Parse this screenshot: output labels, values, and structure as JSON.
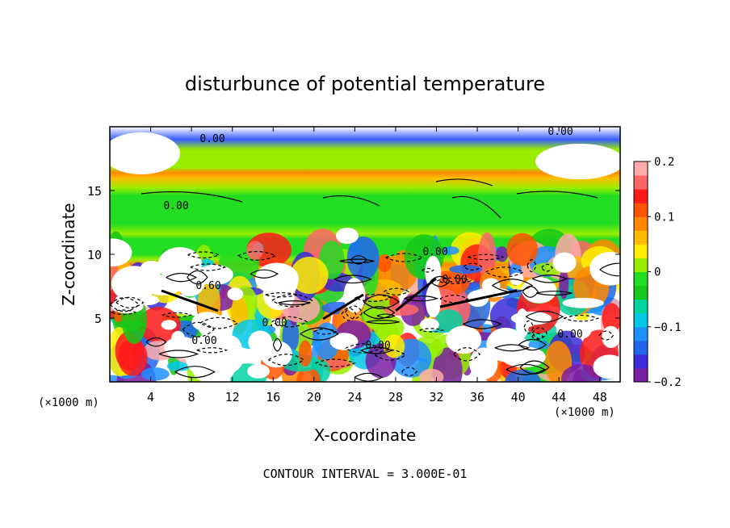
{
  "chart_data": {
    "type": "heatmap",
    "title": "disturbunce of potential temperature",
    "xlabel": "X-coordinate",
    "ylabel": "Z-coordinate",
    "x_unit": "(×1000 m)",
    "z_unit": "(×1000 m)",
    "xlim": [
      0,
      50
    ],
    "ylim": [
      0,
      20
    ],
    "x_ticks": [
      "4",
      "8",
      "12",
      "16",
      "20",
      "24",
      "28",
      "32",
      "36",
      "40",
      "44",
      "48"
    ],
    "y_ticks": [
      "5",
      "10",
      "15"
    ],
    "colorbar": {
      "range": [
        -0.2,
        0.2
      ],
      "tick_labels": [
        "0.2",
        "0.1",
        "0",
        "−0.1",
        "−0.2"
      ],
      "colors": [
        "#7a1fa2",
        "#3b2bd8",
        "#2266ee",
        "#1e90ff",
        "#00c8e6",
        "#00d2a0",
        "#18c818",
        "#22dd22",
        "#99ee00",
        "#ffee00",
        "#ffbb00",
        "#ff8800",
        "#ff5500",
        "#ff1a1a",
        "#ff6666",
        "#ffaaaa"
      ]
    },
    "contour_labels": [
      "0.00",
      "0.00",
      "0.00",
      "0.00",
      "0.00",
      "0.00",
      "0.00",
      "0.00",
      "0.00",
      "0.60"
    ],
    "footer": "CONTOUR INTERVAL = 3.000E-01",
    "grid": false
  }
}
